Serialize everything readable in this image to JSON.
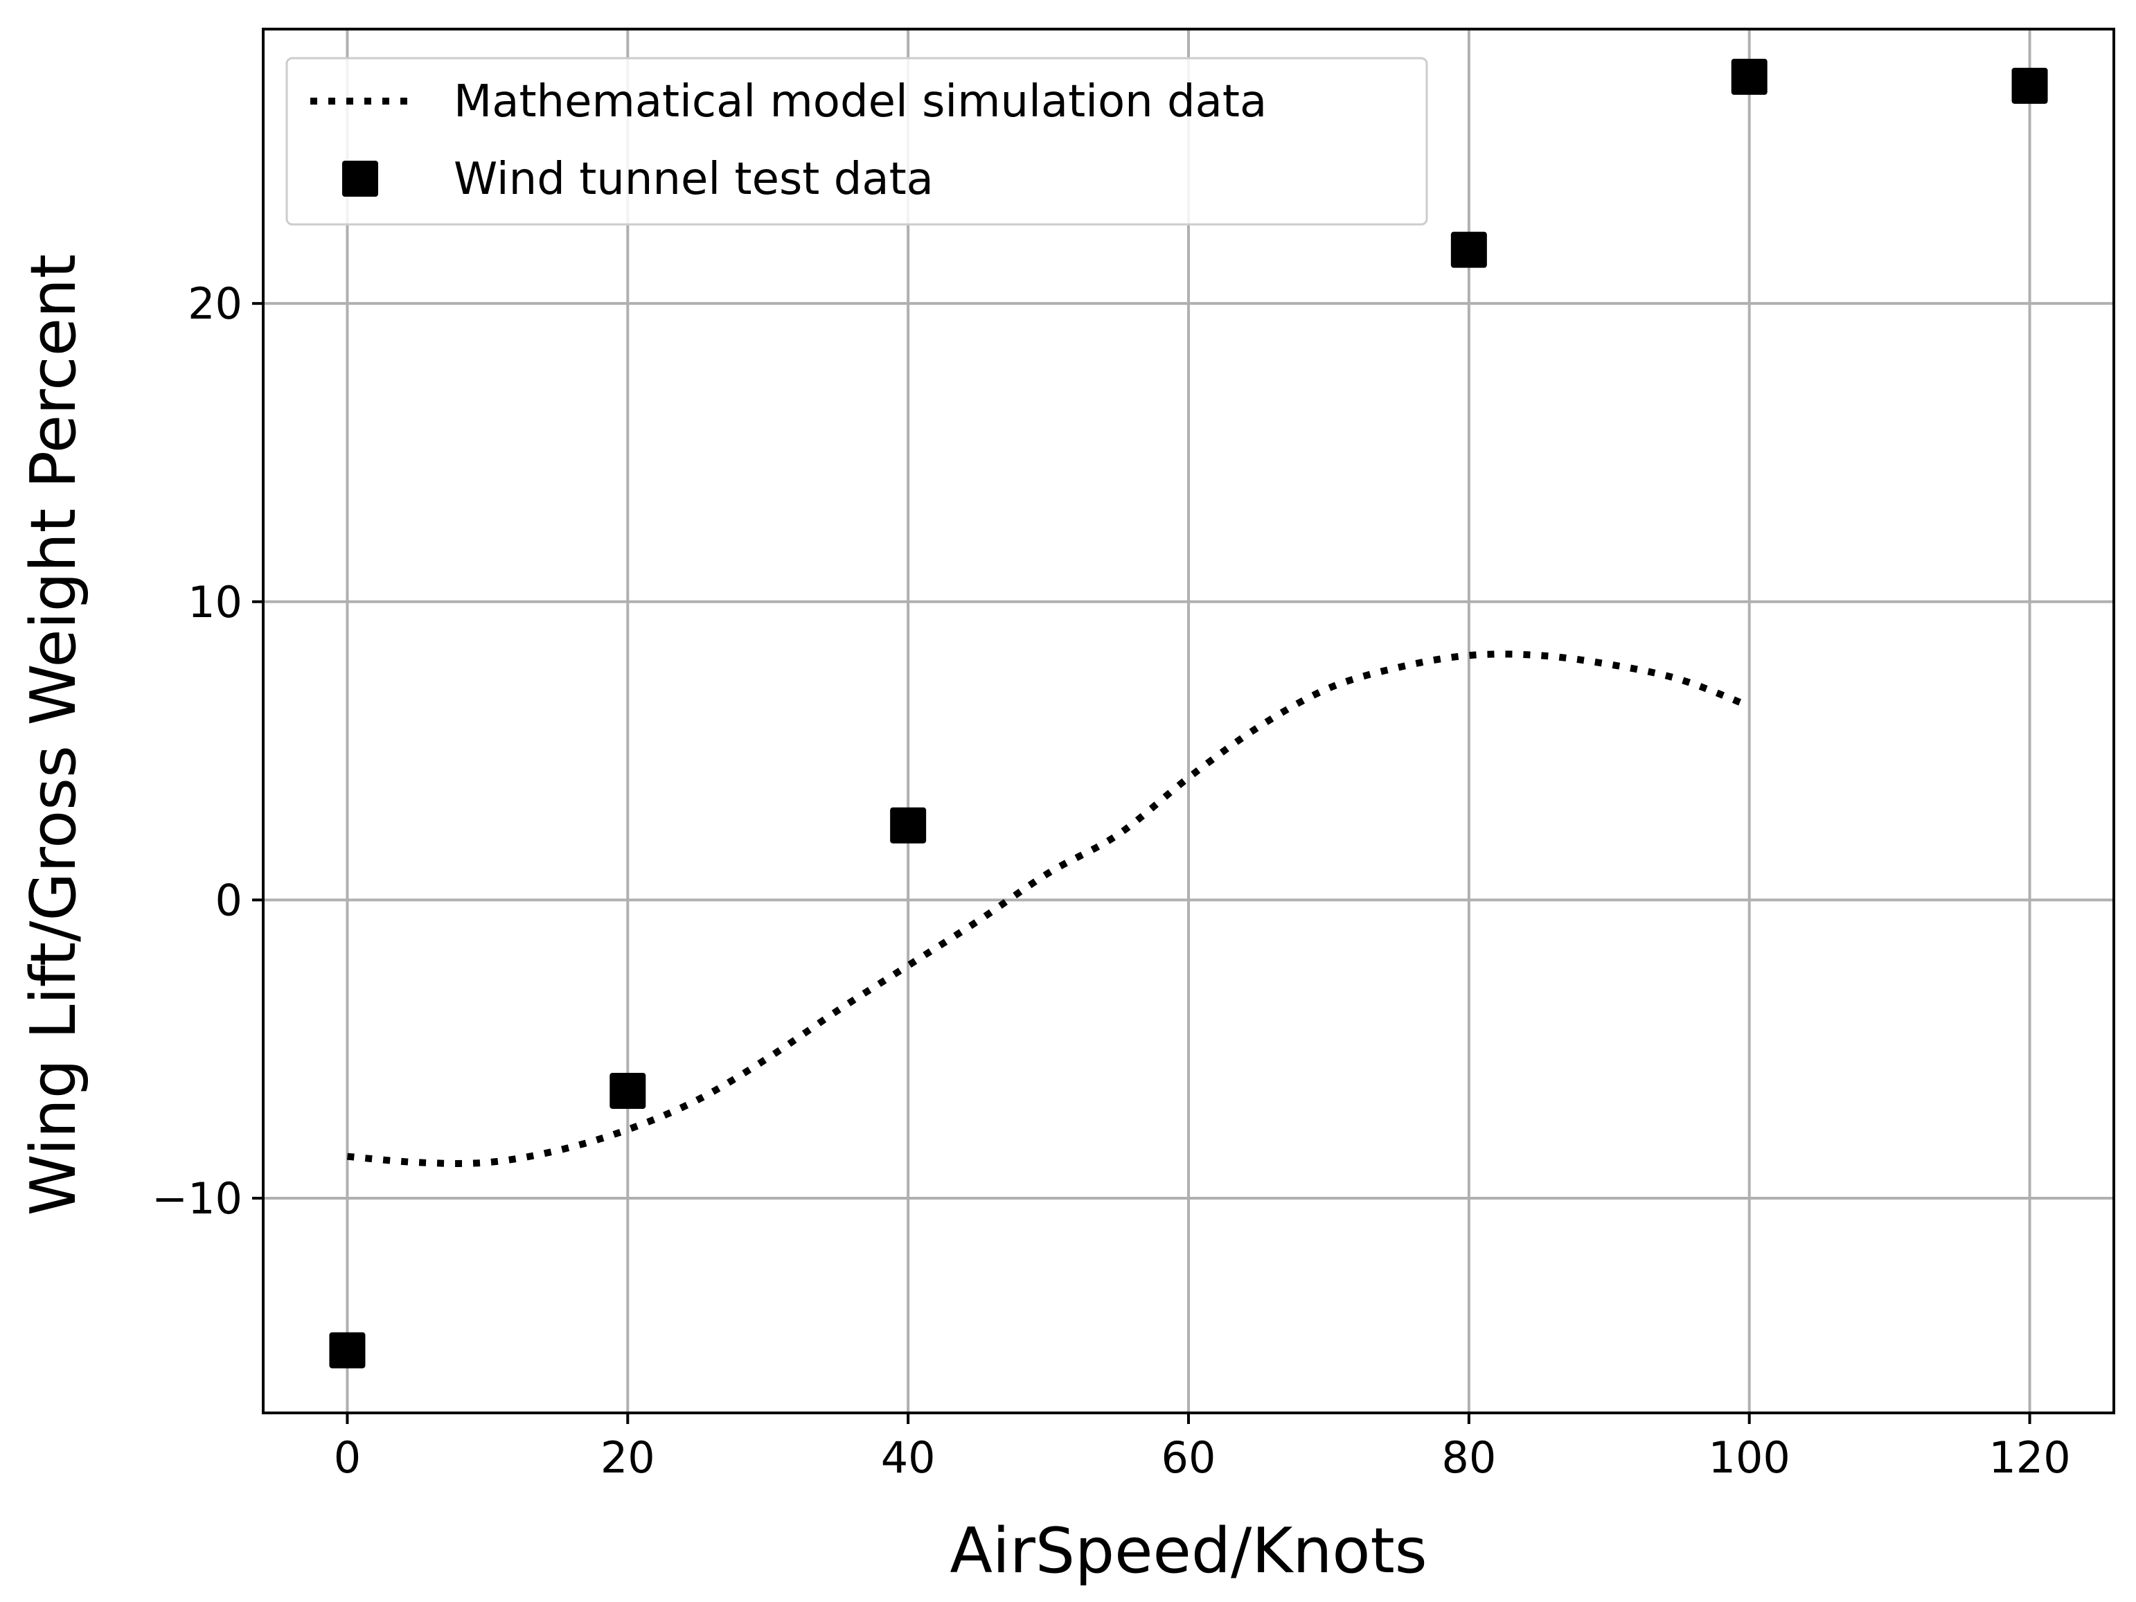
{
  "chart_data": {
    "type": "scatter",
    "title": "",
    "xlabel": "AirSpeed/Knots",
    "ylabel": "Wing Lift/Gross Weight Percent",
    "xlim": [
      -6,
      126
    ],
    "ylim": [
      -17.2,
      29.2
    ],
    "xticks": [
      0,
      20,
      40,
      60,
      80,
      100,
      120
    ],
    "yticks": [
      -10,
      0,
      10,
      20
    ],
    "xtick_labels": [
      "0",
      "20",
      "40",
      "60",
      "80",
      "100",
      "120"
    ],
    "ytick_labels": [
      "−10",
      "0",
      "10",
      "20"
    ],
    "grid": true,
    "legend_position": "upper-left",
    "series": [
      {
        "name": "Mathematical model simulation data",
        "kind": "line",
        "style": "dotted",
        "color": "#000000",
        "x": [
          0,
          5,
          10,
          15,
          20,
          25,
          30,
          35,
          40,
          45,
          50,
          55,
          60,
          65,
          70,
          75,
          80,
          85,
          90,
          95,
          100
        ],
        "y": [
          -8.6,
          -8.8,
          -8.8,
          -8.4,
          -7.7,
          -6.7,
          -5.3,
          -3.7,
          -2.2,
          -0.7,
          0.9,
          2.2,
          4.1,
          5.8,
          7.1,
          7.8,
          8.2,
          8.2,
          7.9,
          7.4,
          6.5
        ]
      },
      {
        "name": "Wind tunnel test data",
        "kind": "scatter",
        "marker": "square",
        "color": "#000000",
        "x": [
          0,
          20,
          40,
          80,
          100,
          120
        ],
        "y": [
          -15.1,
          -6.4,
          2.5,
          21.8,
          27.6,
          27.3
        ]
      }
    ]
  }
}
